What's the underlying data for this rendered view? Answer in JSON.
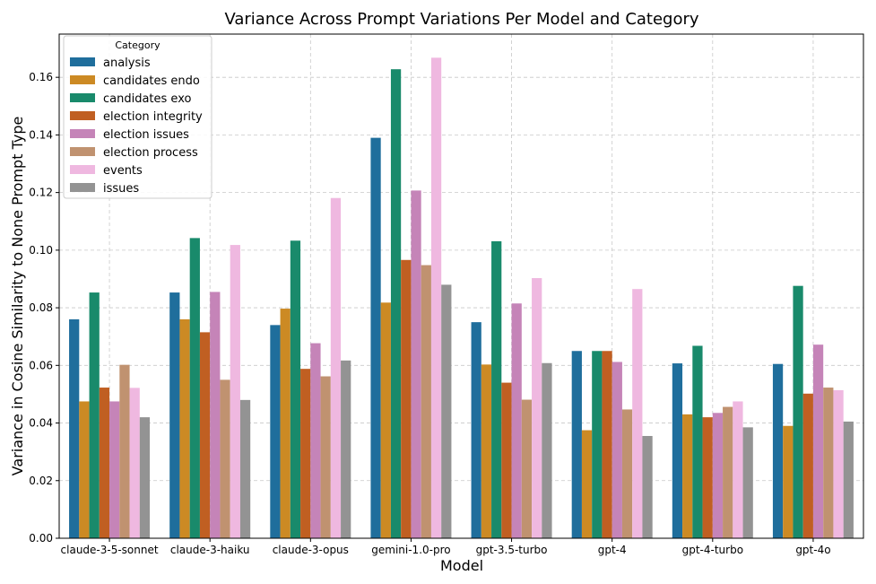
{
  "chart_data": {
    "type": "bar",
    "title": "Variance Across Prompt Variations Per Model and Category",
    "xlabel": "Model",
    "ylabel": "Variance in Cosine Similarity to None Prompt Type",
    "ylim": [
      0,
      0.175
    ],
    "yticks": [
      0.0,
      0.02,
      0.04,
      0.06,
      0.08,
      0.1,
      0.12,
      0.14,
      0.16
    ],
    "ytick_labels": [
      "0.00",
      "0.02",
      "0.04",
      "0.06",
      "0.08",
      "0.10",
      "0.12",
      "0.14",
      "0.16"
    ],
    "grid": true,
    "legend_title": "Category",
    "legend_position": "top-left",
    "categories": [
      "claude-3-5-sonnet",
      "claude-3-haiku",
      "claude-3-opus",
      "gemini-1.0-pro",
      "gpt-3.5-turbo",
      "gpt-4",
      "gpt-4-turbo",
      "gpt-4o"
    ],
    "series": [
      {
        "name": "analysis",
        "color": "#1f6e9c",
        "values": [
          0.076,
          0.0853,
          0.074,
          0.139,
          0.075,
          0.065,
          0.0607,
          0.0605
        ]
      },
      {
        "name": "candidates endo",
        "color": "#cc8a24",
        "values": [
          0.0475,
          0.076,
          0.0797,
          0.0818,
          0.0603,
          0.0375,
          0.043,
          0.039
        ]
      },
      {
        "name": "candidates exo",
        "color": "#198a6b",
        "values": [
          0.0853,
          0.1042,
          0.1033,
          0.1628,
          0.1031,
          0.065,
          0.0668,
          0.0876
        ]
      },
      {
        "name": "election integrity",
        "color": "#c05f22",
        "values": [
          0.0523,
          0.0715,
          0.0588,
          0.0966,
          0.054,
          0.065,
          0.042,
          0.0502
        ]
      },
      {
        "name": "election issues",
        "color": "#c584b8",
        "values": [
          0.0475,
          0.0855,
          0.0677,
          0.1207,
          0.0815,
          0.0612,
          0.0435,
          0.0672
        ]
      },
      {
        "name": "election process",
        "color": "#c09270",
        "values": [
          0.0602,
          0.055,
          0.0562,
          0.0948,
          0.0481,
          0.0447,
          0.0456,
          0.0523
        ]
      },
      {
        "name": "events",
        "color": "#efb8e0",
        "values": [
          0.0522,
          0.1018,
          0.1181,
          0.1668,
          0.0903,
          0.0865,
          0.0475,
          0.0514
        ]
      },
      {
        "name": "issues",
        "color": "#939393",
        "values": [
          0.042,
          0.048,
          0.0617,
          0.088,
          0.0608,
          0.0355,
          0.0385,
          0.0405
        ]
      }
    ]
  }
}
